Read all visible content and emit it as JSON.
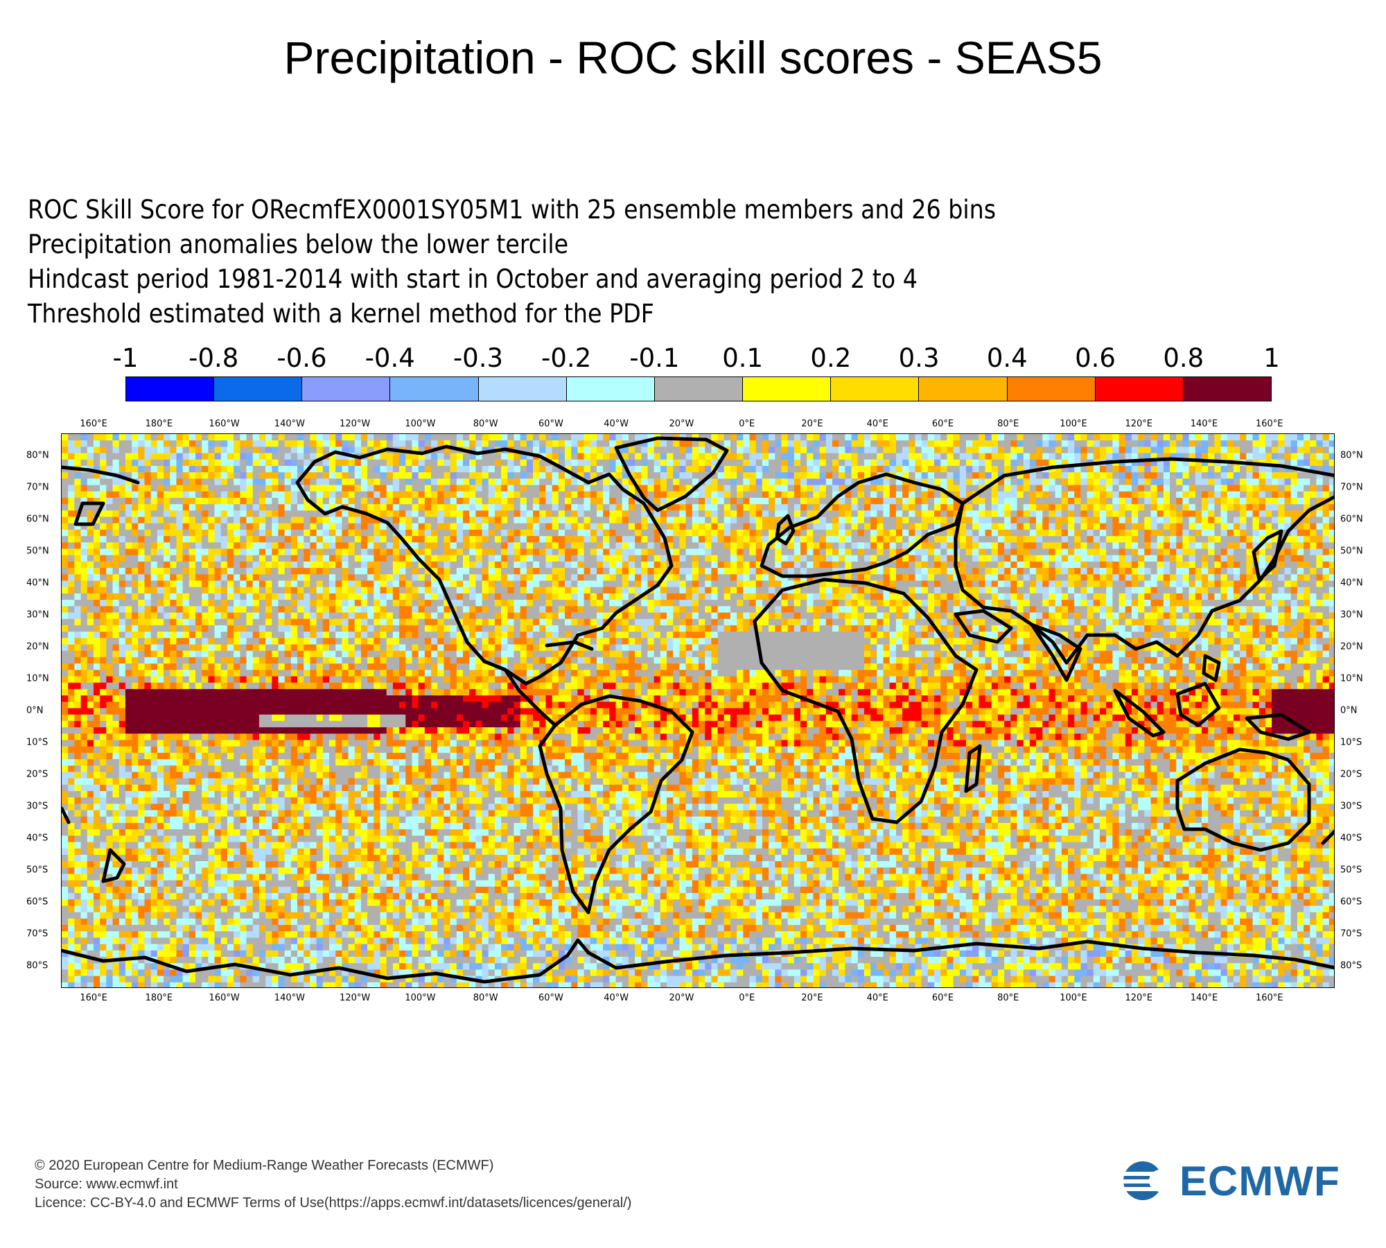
{
  "title": "Precipitation - ROC skill scores - SEAS5",
  "subtitle_lines": [
    "ROC Skill Score for ORecmfEX0001SY05M1 with 25 ensemble members and 26 bins",
    "Precipitation anomalies below the lower tercile",
    "Hindcast period 1981-2014 with start in October and averaging period  2 to  4",
    "Threshold estimated with a kernel method for the PDF"
  ],
  "colorbar": {
    "labels": [
      "-1",
      "-0.8",
      "-0.6",
      "-0.4",
      "-0.3",
      "-0.2",
      "-0.1",
      "0.1",
      "0.2",
      "0.3",
      "0.4",
      "0.6",
      "0.8",
      "1"
    ],
    "colors": [
      "#0000ff",
      "#0a6bea",
      "#8b9dfc",
      "#78b4fa",
      "#b4dcff",
      "#b4ffff",
      "#b0b0b0",
      "#ffff00",
      "#ffdd00",
      "#ffb400",
      "#ff8000",
      "#ff0000",
      "#7a0023"
    ]
  },
  "map": {
    "x_tick_labels": [
      "160°E",
      "180°E",
      "160°W",
      "140°W",
      "120°W",
      "100°W",
      "80°W",
      "60°W",
      "40°W",
      "20°W",
      "0°E",
      "20°E",
      "40°E",
      "60°E",
      "80°E",
      "100°E",
      "120°E",
      "140°E",
      "160°E"
    ],
    "y_tick_labels": [
      "80°N",
      "70°N",
      "60°N",
      "50°N",
      "40°N",
      "30°N",
      "20°N",
      "10°N",
      "0°N",
      "10°S",
      "20°S",
      "30°S",
      "40°S",
      "50°S",
      "60°S",
      "70°S",
      "80°S"
    ],
    "lon_range": [
      150,
      540
    ],
    "lat_range": [
      -87,
      87
    ]
  },
  "footer": {
    "copyright": "© 2020 European Centre for Medium-Range Weather Forecasts (ECMWF)",
    "source": "Source: www.ecmwf.int",
    "licence": "Licence: CC-BY-4.0 and ECMWF Terms of Use(https://apps.ecmwf.int/datasets/licences/general/)"
  },
  "logo": {
    "text": "ECMWF",
    "color": "#1f67a5"
  }
}
